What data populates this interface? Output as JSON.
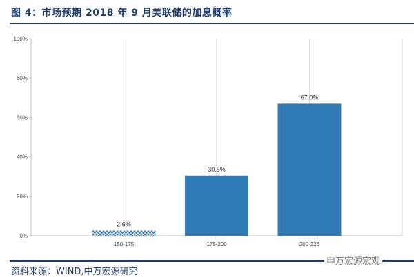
{
  "title": "图 4：市场预期 2018 年 9 月美联储的加息概率",
  "source": "资料来源：WIND,中万宏源研究",
  "brand": "申万宏源宏观",
  "colors": {
    "bar": "#2e7bb8",
    "title": "#1f3c6e",
    "grid": "#d9d9d9"
  },
  "chart_data": {
    "type": "bar",
    "title": "",
    "xlabel": "",
    "ylabel": "",
    "categories": [
      "150-175",
      "175-200",
      "200-225"
    ],
    "values": [
      2.6,
      30.5,
      67.0
    ],
    "data_labels": [
      "2.6%",
      "30.5%",
      "67.0%"
    ],
    "patterns": [
      "crosshatch",
      "solid",
      "solid"
    ],
    "ylim": [
      0,
      100
    ],
    "yticks": [
      0,
      20,
      40,
      60,
      80,
      100
    ],
    "ytick_labels": [
      "0%",
      "20%",
      "40%",
      "60%",
      "80%",
      "100%"
    ],
    "grid": "vertical",
    "legend": "none"
  }
}
